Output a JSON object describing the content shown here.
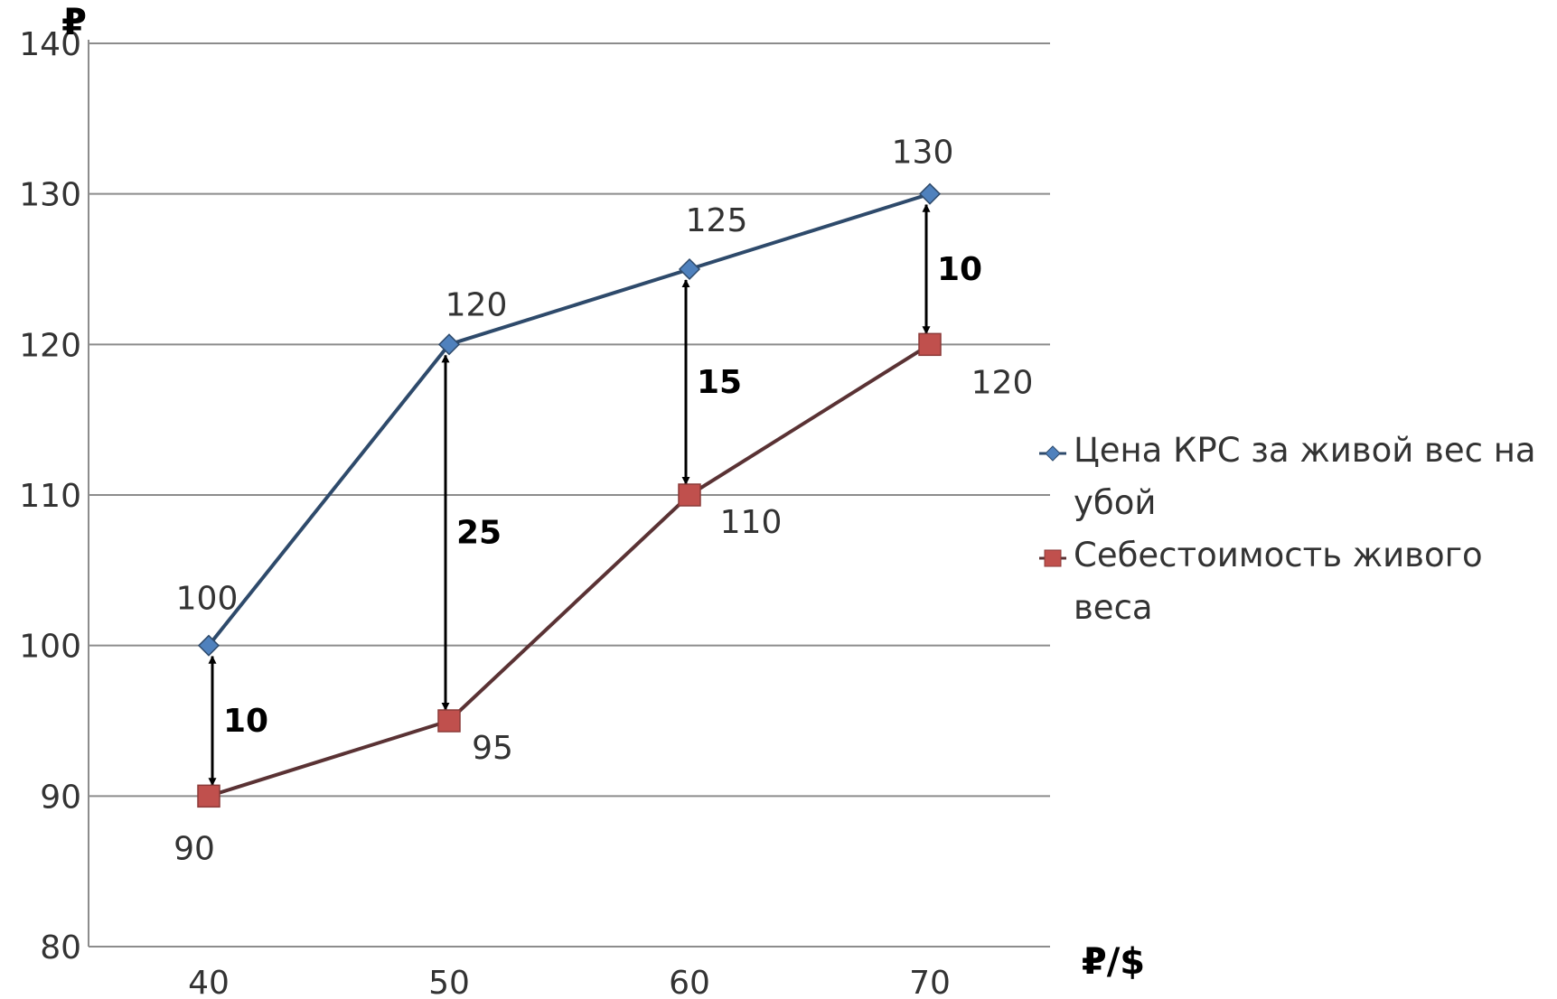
{
  "chart_data": {
    "type": "line",
    "x": [
      40,
      50,
      60,
      70
    ],
    "xlim": [
      35,
      75
    ],
    "ylim": [
      80,
      140
    ],
    "yticks": [
      80,
      90,
      100,
      110,
      120,
      130,
      140
    ],
    "y_unit_label": "₽",
    "x_unit_label": "₽/$",
    "grid": true,
    "legend_position": "right",
    "series": [
      {
        "name": "Цена КРС за живой вес на убой",
        "values": [
          100,
          120,
          125,
          130
        ],
        "color": "#2e4a6b",
        "marker": "diamond",
        "marker_color": "#4f81bd",
        "data_labels": [
          "100",
          "120",
          "125",
          "130"
        ]
      },
      {
        "name": "Себестоимость живого веса",
        "values": [
          90,
          95,
          110,
          120
        ],
        "color": "#5a3234",
        "marker": "square",
        "marker_color": "#c0504d",
        "data_labels": [
          "90",
          "95",
          "110",
          "120"
        ]
      }
    ],
    "annotations": [
      {
        "x": 40,
        "from": 90,
        "to": 100,
        "label": "10"
      },
      {
        "x": 50,
        "from": 95,
        "to": 120,
        "label": "25"
      },
      {
        "x": 60,
        "from": 110,
        "to": 125,
        "label": "15"
      },
      {
        "x": 70,
        "from": 120,
        "to": 130,
        "label": "10"
      }
    ]
  }
}
